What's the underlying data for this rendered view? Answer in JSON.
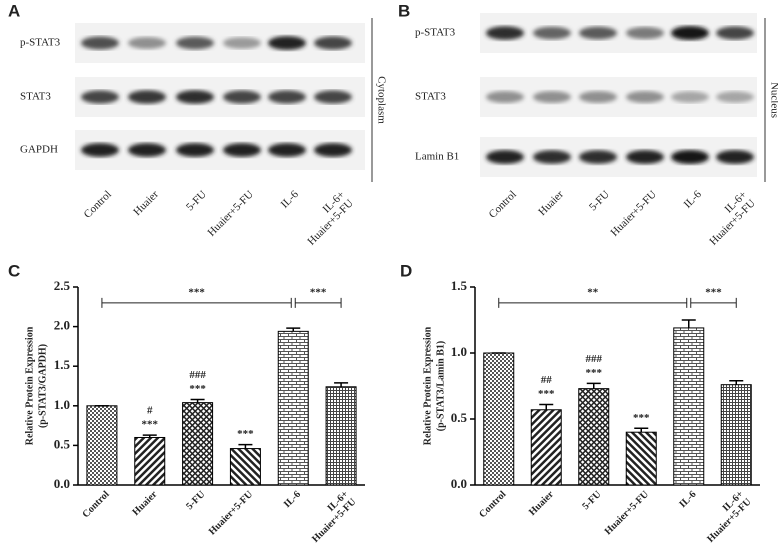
{
  "blots": [
    {
      "label": "A",
      "rows": [
        "p-STAT3",
        "STAT3",
        "GAPDH"
      ],
      "lanes": [
        "Control",
        "Huaier",
        "5-FU",
        "Huaier+5-FU",
        "IL-6",
        "IL-6+\nHuaier+5-FU"
      ],
      "compartment": "Cytoplasm"
    },
    {
      "label": "B",
      "rows": [
        "p-STAT3",
        "STAT3",
        "Lamin B1"
      ],
      "lanes": [
        "Control",
        "Huaier",
        "5-FU",
        "Huaier+5-FU",
        "IL-6",
        "IL-6+\nHuaier+5-FU"
      ],
      "compartment": "Nucleus"
    }
  ],
  "chart_data": [
    {
      "type": "bar",
      "label": "C",
      "ylabel": [
        "Relative Protein Expression",
        "(p-STAT3/GAPDH)"
      ],
      "categories": [
        "Control",
        "Huaier",
        "5-FU",
        "Huaier+5-FU",
        "IL-6",
        "IL-6+\nHuaier+5-FU"
      ],
      "values": [
        1.0,
        0.6,
        1.04,
        0.46,
        1.94,
        1.24
      ],
      "errors": [
        0,
        0.03,
        0.04,
        0.05,
        0.04,
        0.05
      ],
      "ylim": [
        0,
        2.5
      ],
      "yticks": [
        {
          "value": 0,
          "label": "0.0"
        },
        0.5,
        {
          "value": 1,
          "label": "1.0"
        },
        1.5,
        {
          "value": 2,
          "label": "2.0"
        },
        2.5
      ],
      "annotations": [
        {
          "category": "Huaier",
          "text": [
            "***",
            "#"
          ]
        },
        {
          "category": "5-FU",
          "text": [
            "***",
            "###"
          ]
        },
        {
          "category": "Huaier+5-FU",
          "text": [
            "***"
          ]
        }
      ],
      "brackets": [
        {
          "from": "Control",
          "to": "IL-6",
          "text": "***"
        },
        {
          "from": "IL-6",
          "to": "IL-6+\nHuaier+5-FU",
          "text": "***"
        }
      ]
    },
    {
      "type": "bar",
      "label": "D",
      "ylabel": [
        "Relative Protein Expression",
        "(p-STAT3/Lamin B1)"
      ],
      "categories": [
        "Control",
        "Huaier",
        "5-FU",
        "Huaier+5-FU",
        "IL-6",
        "IL-6+\nHuaier+5-FU"
      ],
      "values": [
        1.0,
        0.57,
        0.73,
        0.4,
        1.19,
        0.76
      ],
      "errors": [
        0,
        0.04,
        0.04,
        0.03,
        0.06,
        0.03
      ],
      "ylim": [
        0,
        1.5
      ],
      "yticks": [
        {
          "value": 0,
          "label": "0.0"
        },
        0.5,
        {
          "value": 1,
          "label": "1.0"
        },
        1.5
      ],
      "annotations": [
        {
          "category": "Huaier",
          "text": [
            "***",
            "##"
          ]
        },
        {
          "category": "5-FU",
          "text": [
            "***",
            "###"
          ]
        },
        {
          "category": "Huaier+5-FU",
          "text": [
            "***"
          ]
        }
      ],
      "brackets": [
        {
          "from": "Control",
          "to": "IL-6",
          "text": "**"
        },
        {
          "from": "IL-6",
          "to": "IL-6+\nHuaier+5-FU",
          "text": "***"
        }
      ]
    }
  ]
}
